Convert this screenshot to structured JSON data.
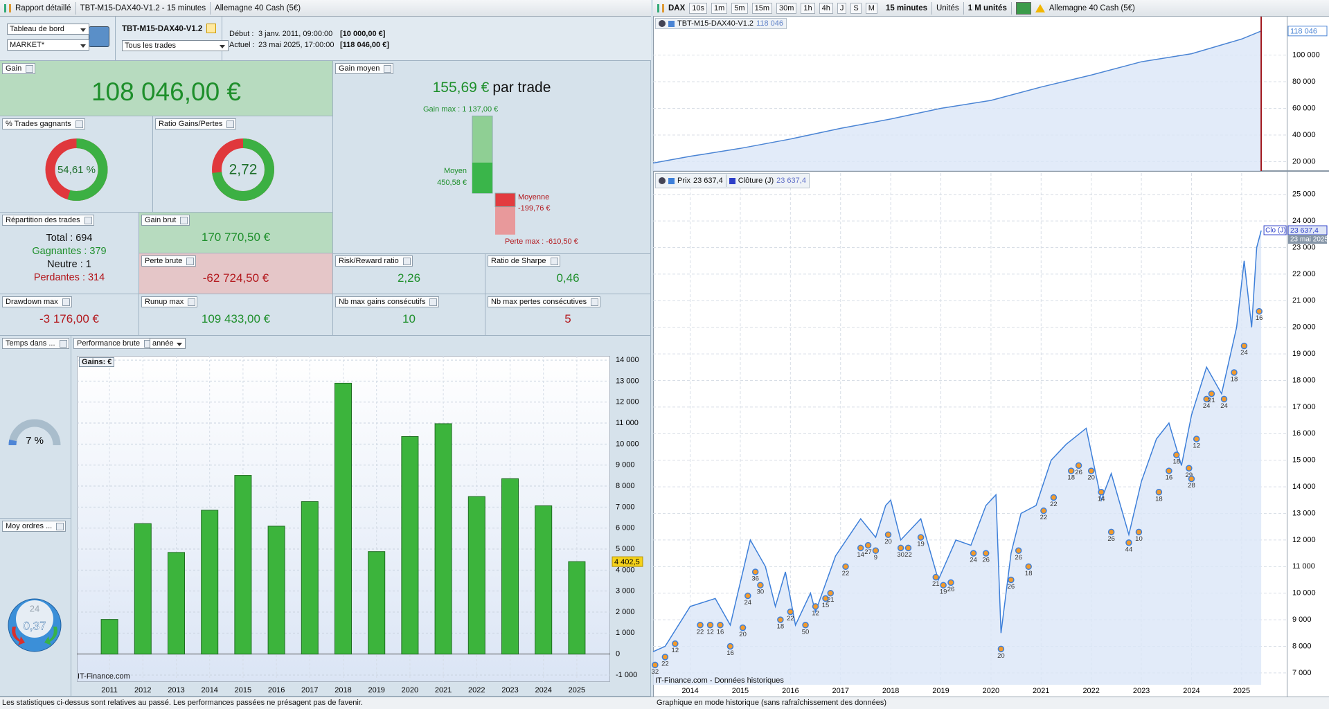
{
  "toolbar_left": {
    "title": "Rapport détaillé",
    "strategy": "TBT-M15-DAX40-V1.2 - 15 minutes",
    "instrument": "Allemagne 40 Cash (5€)"
  },
  "toolbar_right": {
    "symbol": "DAX",
    "intervals": [
      "10s",
      "1m",
      "5m",
      "15m",
      "30m",
      "1h",
      "4h",
      "J",
      "S",
      "M"
    ],
    "period": "15 minutes",
    "units_mode": "Unités",
    "units": "1 M unités",
    "instrument": "Allemagne 40 Cash (5€)"
  },
  "header": {
    "view": "Tableau de bord",
    "account": "MARKET*",
    "strategy": "TBT-M15-DAX40-V1.2",
    "filter": "Tous les trades",
    "start_label": "Début :",
    "start_date": "3 janv. 2011, 09:00:00",
    "start_capital": "[10 000,00 €]",
    "current_label": "Actuel :",
    "current_date": "23 mai 2025, 17:00:00",
    "current_capital": "[118 046,00 €]"
  },
  "stats": {
    "gain": {
      "label": "Gain",
      "value": "108 046,00 €"
    },
    "average_gain": {
      "label": "Gain moyen",
      "value": "155,69 €",
      "unit": "par trade",
      "bars": [
        {
          "value": 1137,
          "label": "Gain max : 1 137,00 €"
        },
        {
          "value": 450.58,
          "label": "Moyen",
          "value_label": "450,58 €"
        },
        {
          "value": -199.76,
          "label": "Moyenne",
          "value_label": "-199,76 €"
        },
        {
          "value": -610.5,
          "label": "Perte max : -610,50 €"
        }
      ]
    },
    "win_rate": {
      "label": "% Trades gagnants",
      "value": 54.61,
      "value_label": "54,61 %"
    },
    "gain_loss_ratio": {
      "label": "Ratio Gains/Pertes",
      "value": 2.72,
      "value_label": "2,72"
    },
    "breakdown": {
      "label": "Répartition des trades",
      "rows": [
        {
          "label": "Total :",
          "value": 694
        },
        {
          "label": "Gagnantes :",
          "value": 379
        },
        {
          "label": "Neutre :",
          "value": 1
        },
        {
          "label": "Perdantes :",
          "value": 314
        }
      ]
    },
    "gross_gain": {
      "label": "Gain brut",
      "value": "170 770,50 €"
    },
    "gross_loss": {
      "label": "Perte brute",
      "value": "-62 724,50 €"
    },
    "risk_reward": {
      "label": "Risk/Reward ratio",
      "value": "2,26"
    },
    "sharpe": {
      "label": "Ratio de Sharpe",
      "value": "0,46"
    },
    "drawdown": {
      "label": "Drawdown max",
      "value": "-3 176,00 €"
    },
    "runup": {
      "label": "Runup max",
      "value": "109 433,00 €"
    },
    "max_consec_gains": {
      "label": "Nb max gains consécutifs",
      "value": 10
    },
    "max_consec_losses": {
      "label": "Nb max pertes consécutives",
      "value": 5
    },
    "time_in_market": {
      "label": "Temps dans ...",
      "value": 7,
      "value_label": "7 %"
    },
    "avg_orders": {
      "label": "Moy ordres ...",
      "value": "0,37",
      "clock": 24
    }
  },
  "chart_data": [
    {
      "type": "bar",
      "title": "Performance brute",
      "period": "année",
      "legend": "Gains: €",
      "watermark": "IT-Finance.com",
      "color": "#3cb43c",
      "categories": [
        "2011",
        "2012",
        "2013",
        "2014",
        "2015",
        "2016",
        "2017",
        "2018",
        "2019",
        "2020",
        "2021",
        "2022",
        "2023",
        "2024",
        "2025"
      ],
      "values": [
        1650,
        6210,
        4840,
        6850,
        8510,
        6090,
        7260,
        12900,
        4880,
        10360,
        10970,
        7500,
        8350,
        7060,
        4402.5
      ],
      "value_labels": [
        null,
        null,
        null,
        null,
        null,
        null,
        null,
        null,
        null,
        null,
        null,
        null,
        null,
        null,
        "4 402,5"
      ],
      "ylim": [
        -1330,
        14200
      ],
      "yticks": [
        {
          "value": -1000,
          "label": "-1 000"
        },
        0,
        {
          "value": 1000,
          "label": "1 000"
        },
        {
          "value": 2000,
          "label": "2 000"
        },
        {
          "value": 3000,
          "label": "3 000"
        },
        {
          "value": 4000,
          "label": "4 000"
        },
        {
          "value": 5000,
          "label": "5 000"
        },
        {
          "value": 6000,
          "label": "6 000"
        },
        {
          "value": 7000,
          "label": "7 000"
        },
        {
          "value": 8000,
          "label": "8 000"
        },
        {
          "value": 9000,
          "label": "9 000"
        },
        {
          "value": 10000,
          "label": "10 000"
        },
        {
          "value": 11000,
          "label": "11 000"
        },
        {
          "value": 12000,
          "label": "12 000"
        },
        {
          "value": 13000,
          "label": "13 000"
        },
        {
          "value": 14000,
          "label": "14 000"
        }
      ],
      "grid": true
    },
    {
      "type": "line",
      "last_label": "118 046",
      "x": [
        2013.26,
        2014,
        2015,
        2016,
        2017,
        2018,
        2019,
        2020,
        2021,
        2022,
        2023,
        2024,
        2025,
        2025.39
      ],
      "series": [
        {
          "name": "TBT-M15-DAX40-V1.2",
          "color": "#4a84d4",
          "values": [
            19000,
            24000,
            30000,
            37000,
            45000,
            52000,
            60000,
            66000,
            76000,
            85000,
            95000,
            101000,
            112000,
            118046
          ],
          "legend_value": "118 046"
        }
      ],
      "xlim": [
        2013.26,
        2025.9
      ],
      "ylim": [
        13000,
        127300
      ],
      "yticks": [
        {
          "value": 20000,
          "label": "20 000"
        },
        {
          "value": 40000,
          "label": "40 000"
        },
        {
          "value": 60000,
          "label": "60 000"
        },
        {
          "value": 80000,
          "label": "80 000"
        },
        {
          "value": 100000,
          "label": "100 000"
        }
      ],
      "grid": true
    },
    {
      "type": "line",
      "watermark": "IT-Finance.com - Données historiques",
      "x": [
        2013.26,
        2013.5,
        2014.0,
        2014.5,
        2014.8,
        2015.2,
        2015.5,
        2015.7,
        2015.9,
        2016.1,
        2016.4,
        2016.5,
        2016.9,
        2017.4,
        2017.7,
        2017.9,
        2018.0,
        2018.2,
        2018.6,
        2018.95,
        2019.3,
        2019.6,
        2019.9,
        2020.1,
        2020.2,
        2020.4,
        2020.6,
        2020.9,
        2021.2,
        2021.5,
        2021.9,
        2022.2,
        2022.4,
        2022.75,
        2023.0,
        2023.3,
        2023.55,
        2023.8,
        2024.0,
        2024.3,
        2024.6,
        2024.9,
        2025.05,
        2025.2,
        2025.3,
        2025.39
      ],
      "series": [
        {
          "name": "Prix",
          "color": "#3d7fd9",
          "legend_value": "23 637,4",
          "values": [
            7800,
            8000,
            9500,
            9800,
            8800,
            12000,
            11000,
            9500,
            10800,
            8800,
            10000,
            9300,
            11400,
            12800,
            12100,
            13300,
            13500,
            12000,
            12800,
            10500,
            12000,
            11800,
            13300,
            13700,
            8500,
            11500,
            13000,
            13300,
            15000,
            15600,
            16200,
            13500,
            14500,
            12200,
            14200,
            15800,
            16400,
            14800,
            16700,
            18500,
            17500,
            20000,
            22500,
            20000,
            23000,
            23637.4
          ]
        }
      ],
      "close_legend": {
        "name": "Clôture (J)",
        "color": "#2d3fc8",
        "value": "23 637,4"
      },
      "close_tag": "Clo (J)",
      "price_tag": "23 637,4",
      "date_tag": "23 mai 2025",
      "markers": {
        "x": [
          2013.3,
          2013.5,
          2013.7,
          2014.2,
          2014.4,
          2014.6,
          2014.8,
          2015.05,
          2015.15,
          2015.3,
          2015.4,
          2015.8,
          2016.0,
          2016.3,
          2016.5,
          2016.7,
          2016.8,
          2017.1,
          2017.4,
          2017.55,
          2017.7,
          2017.95,
          2018.2,
          2018.35,
          2018.6,
          2018.9,
          2019.05,
          2019.2,
          2019.65,
          2019.9,
          2020.2,
          2020.4,
          2020.55,
          2020.75,
          2021.05,
          2021.25,
          2021.6,
          2021.75,
          2022.0,
          2022.2,
          2022.4,
          2022.75,
          2022.95,
          2023.35,
          2023.55,
          2023.7,
          2023.95,
          2024.0,
          2024.1,
          2024.3,
          2024.4,
          2024.65,
          2024.85,
          2025.05,
          2025.35
        ],
        "y": [
          7300,
          7600,
          8100,
          8800,
          8800,
          8800,
          8000,
          8700,
          9900,
          10800,
          10300,
          9000,
          9300,
          8800,
          9500,
          9800,
          10000,
          11000,
          11700,
          11800,
          11600,
          12200,
          11700,
          11700,
          12100,
          10600,
          10300,
          10400,
          11500,
          11500,
          7900,
          10500,
          11600,
          11000,
          13100,
          13600,
          14600,
          14800,
          14600,
          13800,
          12300,
          11900,
          12300,
          13800,
          14600,
          15200,
          14700,
          14300,
          15800,
          17300,
          17500,
          17300,
          18300,
          19300,
          20600
        ],
        "labels": [
          32,
          22,
          12,
          22,
          12,
          16,
          16,
          20,
          24,
          36,
          30,
          18,
          22,
          50,
          12,
          15,
          21,
          22,
          14,
          27,
          9,
          20,
          30,
          22,
          19,
          21,
          19,
          26,
          24,
          26,
          20,
          26,
          26,
          18,
          22,
          22,
          18,
          26,
          20,
          14,
          26,
          44,
          10,
          18,
          16,
          18,
          29,
          28,
          12,
          24,
          21,
          24,
          18,
          24,
          16
        ]
      },
      "xlim": [
        2013.26,
        2025.9
      ],
      "ylim": [
        6555,
        25800
      ],
      "xticks": [
        2014,
        2015,
        2016,
        2017,
        2018,
        2019,
        2020,
        2021,
        2022,
        2023,
        2024,
        2025
      ],
      "yticks": [
        {
          "value": 7000,
          "label": "7 000"
        },
        {
          "value": 8000,
          "label": "8 000"
        },
        {
          "value": 9000,
          "label": "9 000"
        },
        {
          "value": 10000,
          "label": "10 000"
        },
        {
          "value": 11000,
          "label": "11 000"
        },
        {
          "value": 12000,
          "label": "12 000"
        },
        {
          "value": 13000,
          "label": "13 000"
        },
        {
          "value": 14000,
          "label": "14 000"
        },
        {
          "value": 15000,
          "label": "15 000"
        },
        {
          "value": 16000,
          "label": "16 000"
        },
        {
          "value": 17000,
          "label": "17 000"
        },
        {
          "value": 18000,
          "label": "18 000"
        },
        {
          "value": 19000,
          "label": "19 000"
        },
        {
          "value": 20000,
          "label": "20 000"
        },
        {
          "value": 21000,
          "label": "21 000"
        },
        {
          "value": 22000,
          "label": "22 000"
        },
        {
          "value": 23000,
          "label": "23 000"
        },
        {
          "value": 24000,
          "label": "24 000"
        },
        {
          "value": 25000,
          "label": "25 000"
        }
      ],
      "grid": true
    }
  ],
  "footer": {
    "left": "Les statistiques ci-dessus sont relatives au passé. Les performances passées ne présagent pas de favenir.",
    "right": "Graphique en mode historique (sans rafraîchissement des données)"
  }
}
